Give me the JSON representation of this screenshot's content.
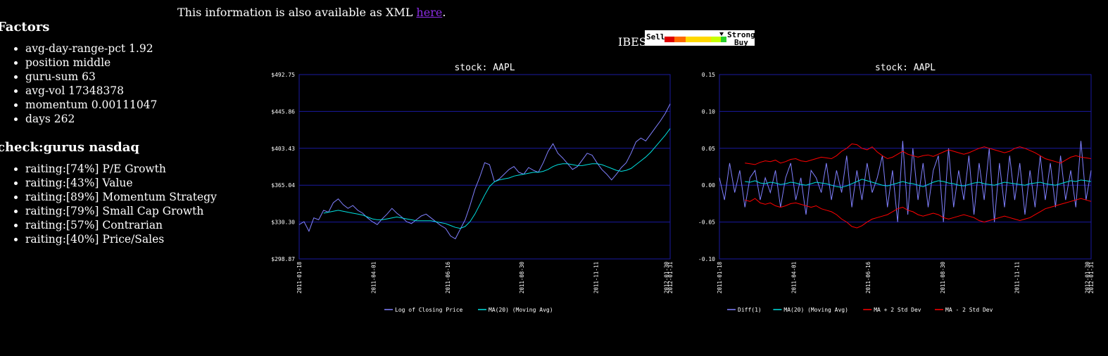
{
  "xml_note": {
    "prefix": "This information is also available as XML ",
    "link": "here",
    "suffix": "."
  },
  "factors": {
    "title": "Factors",
    "items": [
      "avg-day-range-pct 1.92",
      "position middle",
      "guru-sum 63",
      "avg-vol 17348378",
      "momentum 0.00111047",
      "days 262"
    ]
  },
  "gurus": {
    "title": "check:gurus nasdaq",
    "items": [
      "raiting:[74%] P/E Growth",
      "raiting:[43%] Value",
      "raiting:[89%] Momentum Strategy",
      "raiting:[79%] Small Cap Growth",
      "raiting:[57%] Contrarian",
      "raiting:[40%] Price/Sales"
    ]
  },
  "ibes": {
    "label": "IBES:",
    "sell": "Sell",
    "strong": "Strong",
    "buy": "Buy",
    "colors": [
      "#e00000",
      "#ff6a00",
      "#ffd800",
      "#c8ff00",
      "#2ad02a"
    ]
  },
  "chart_data": [
    {
      "type": "line",
      "title": "stock: AAPL",
      "ylim": [
        298.87,
        492.75
      ],
      "y_ticks": [
        "$492.75",
        "$445.86",
        "$403.43",
        "$365.04",
        "$330.30",
        "$298.87"
      ],
      "x_ticks": [
        "2011-01-18",
        "2011-04-01",
        "2011-06-16",
        "2011-08-30",
        "2011-11-11",
        "2012-01-30",
        "2012-01-31"
      ],
      "series": [
        {
          "name": "Log of Closing Price",
          "color": "#8080ff",
          "values": [
            335,
            338,
            328,
            342,
            340,
            350,
            348,
            358,
            362,
            356,
            352,
            355,
            350,
            347,
            342,
            338,
            335,
            341,
            346,
            352,
            347,
            343,
            338,
            336,
            340,
            344,
            346,
            342,
            338,
            334,
            331,
            323,
            320,
            330,
            340,
            355,
            372,
            385,
            400,
            398,
            380,
            383,
            388,
            393,
            396,
            390,
            388,
            395,
            392,
            390,
            400,
            412,
            420,
            410,
            405,
            399,
            393,
            396,
            403,
            410,
            408,
            400,
            393,
            388,
            382,
            388,
            395,
            400,
            410,
            422,
            426,
            423,
            430,
            437,
            444,
            452,
            462
          ]
        },
        {
          "name": "MA(20) (Moving Avg)",
          "color": "#00e0e0",
          "values": [
            null,
            null,
            null,
            null,
            null,
            347,
            348,
            349,
            350,
            349,
            348,
            347,
            346,
            345,
            343,
            341,
            340,
            340,
            341,
            342,
            343,
            342,
            341,
            340,
            339,
            339,
            339,
            339,
            338,
            337,
            336,
            334,
            332,
            331,
            333,
            338,
            346,
            356,
            366,
            375,
            380,
            382,
            383,
            384,
            386,
            387,
            388,
            389,
            390,
            390,
            391,
            393,
            396,
            398,
            399,
            399,
            398,
            397,
            397,
            398,
            399,
            399,
            398,
            396,
            394,
            392,
            391,
            392,
            394,
            398,
            402,
            406,
            411,
            417,
            423,
            429,
            436
          ]
        }
      ],
      "legend": [
        "Log of Closing Price",
        "MA(20) (Moving Avg)"
      ]
    },
    {
      "type": "line",
      "title": "stock: AAPL",
      "ylim": [
        -0.1,
        0.15
      ],
      "y_ticks": [
        "0.15",
        "0.10",
        "0.05",
        "0.00",
        "-0.05",
        "-0.10"
      ],
      "x_ticks": [
        "2011-01-18",
        "2011-04-01",
        "2011-06-16",
        "2011-08-30",
        "2011-11-11",
        "2012-01-30",
        "2012-01-31"
      ],
      "series": [
        {
          "name": "Diff(1)",
          "color": "#8080ff",
          "values": [
            0.01,
            -0.02,
            0.03,
            -0.01,
            0.02,
            -0.03,
            0.01,
            0.02,
            -0.02,
            0.01,
            -0.01,
            0.02,
            -0.03,
            0.01,
            0.03,
            -0.02,
            0.01,
            -0.04,
            0.02,
            0.01,
            -0.01,
            0.03,
            -0.02,
            0.02,
            -0.01,
            0.04,
            -0.03,
            0.02,
            -0.02,
            0.03,
            -0.01,
            0.01,
            0.04,
            -0.03,
            0.02,
            -0.05,
            0.06,
            -0.04,
            0.05,
            -0.02,
            0.03,
            -0.03,
            0.02,
            0.04,
            -0.05,
            0.05,
            -0.03,
            0.02,
            -0.02,
            0.04,
            -0.04,
            0.03,
            -0.02,
            0.05,
            -0.05,
            0.03,
            -0.03,
            0.04,
            -0.02,
            0.03,
            -0.04,
            0.02,
            -0.03,
            0.04,
            -0.02,
            0.03,
            -0.03,
            0.04,
            -0.02,
            0.02,
            -0.03,
            0.06,
            -0.02,
            0.02
          ]
        },
        {
          "name": "MA(20) (Moving Avg)",
          "color": "#00e0e0",
          "values": [
            null,
            null,
            null,
            null,
            null,
            0.005,
            0.004,
            0.006,
            0.003,
            0.002,
            0.004,
            0.003,
            0.001,
            0.002,
            0.004,
            0.003,
            0.001,
            0.0,
            0.002,
            0.004,
            0.003,
            0.002,
            0.0,
            -0.002,
            -0.003,
            -0.001,
            0.002,
            0.005,
            0.008,
            0.006,
            0.004,
            0.002,
            0.0,
            -0.001,
            0.001,
            0.003,
            0.005,
            0.003,
            0.002,
            0.0,
            -0.002,
            0.001,
            0.004,
            0.006,
            0.005,
            0.003,
            0.002,
            0.0,
            -0.001,
            0.001,
            0.003,
            0.004,
            0.002,
            0.001,
            0.0,
            0.002,
            0.004,
            0.003,
            0.002,
            0.001,
            0.0,
            0.002,
            0.003,
            0.004,
            0.002,
            0.001,
            0.0,
            0.002,
            0.004,
            0.006,
            0.005,
            0.007,
            0.006,
            0.005
          ]
        },
        {
          "name": "MA + 2 Std Dev",
          "color": "#ff0000",
          "values": [
            null,
            null,
            null,
            null,
            null,
            0.03,
            0.029,
            0.028,
            0.031,
            0.033,
            0.032,
            0.034,
            0.03,
            0.032,
            0.035,
            0.036,
            0.033,
            0.032,
            0.034,
            0.036,
            0.038,
            0.037,
            0.036,
            0.04,
            0.046,
            0.05,
            0.056,
            0.055,
            0.05,
            0.048,
            0.052,
            0.045,
            0.04,
            0.036,
            0.038,
            0.042,
            0.046,
            0.042,
            0.04,
            0.038,
            0.04,
            0.041,
            0.039,
            0.042,
            0.045,
            0.048,
            0.046,
            0.044,
            0.042,
            0.044,
            0.047,
            0.05,
            0.052,
            0.05,
            0.048,
            0.046,
            0.044,
            0.046,
            0.05,
            0.052,
            0.05,
            0.047,
            0.044,
            0.04,
            0.036,
            0.034,
            0.032,
            0.03,
            0.034,
            0.038,
            0.04,
            0.038,
            0.037,
            0.036
          ]
        },
        {
          "name": "MA - 2 Std Dev",
          "color": "#ff0000",
          "values": [
            null,
            null,
            null,
            null,
            null,
            -0.02,
            -0.022,
            -0.018,
            -0.024,
            -0.026,
            -0.024,
            -0.028,
            -0.03,
            -0.028,
            -0.025,
            -0.024,
            -0.026,
            -0.028,
            -0.03,
            -0.028,
            -0.032,
            -0.034,
            -0.036,
            -0.04,
            -0.046,
            -0.05,
            -0.056,
            -0.058,
            -0.055,
            -0.05,
            -0.046,
            -0.044,
            -0.042,
            -0.04,
            -0.036,
            -0.032,
            -0.03,
            -0.034,
            -0.036,
            -0.04,
            -0.042,
            -0.04,
            -0.038,
            -0.04,
            -0.044,
            -0.046,
            -0.044,
            -0.042,
            -0.04,
            -0.042,
            -0.044,
            -0.048,
            -0.05,
            -0.048,
            -0.046,
            -0.044,
            -0.042,
            -0.044,
            -0.046,
            -0.048,
            -0.046,
            -0.044,
            -0.04,
            -0.036,
            -0.032,
            -0.03,
            -0.028,
            -0.026,
            -0.024,
            -0.022,
            -0.02,
            -0.018,
            -0.02,
            -0.022
          ]
        }
      ],
      "legend": [
        "Diff(1)",
        "MA(20) (Moving Avg)",
        "MA + 2 Std Dev",
        "MA - 2 Std Dev"
      ]
    }
  ]
}
